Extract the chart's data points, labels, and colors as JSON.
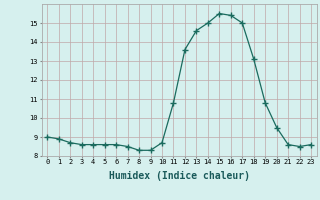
{
  "x": [
    0,
    1,
    2,
    3,
    4,
    5,
    6,
    7,
    8,
    9,
    10,
    11,
    12,
    13,
    14,
    15,
    16,
    17,
    18,
    19,
    20,
    21,
    22,
    23
  ],
  "y": [
    9.0,
    8.9,
    8.7,
    8.6,
    8.6,
    8.6,
    8.6,
    8.5,
    8.3,
    8.3,
    8.7,
    10.8,
    13.6,
    14.6,
    15.0,
    15.5,
    15.4,
    15.0,
    13.1,
    10.8,
    9.5,
    8.6,
    8.5,
    8.6
  ],
  "xlabel": "Humidex (Indice chaleur)",
  "ylim": [
    8,
    16
  ],
  "xlim": [
    -0.5,
    23.5
  ],
  "yticks": [
    8,
    9,
    10,
    11,
    12,
    13,
    14,
    15
  ],
  "xticks": [
    0,
    1,
    2,
    3,
    4,
    5,
    6,
    7,
    8,
    9,
    10,
    11,
    12,
    13,
    14,
    15,
    16,
    17,
    18,
    19,
    20,
    21,
    22,
    23
  ],
  "line_color": "#1a6b5e",
  "marker": "+",
  "marker_size": 4,
  "bg_color": "#d6f0ee",
  "grid_color": "#c0a8a8",
  "xlabel_fontsize": 7,
  "tick_fontsize": 5
}
